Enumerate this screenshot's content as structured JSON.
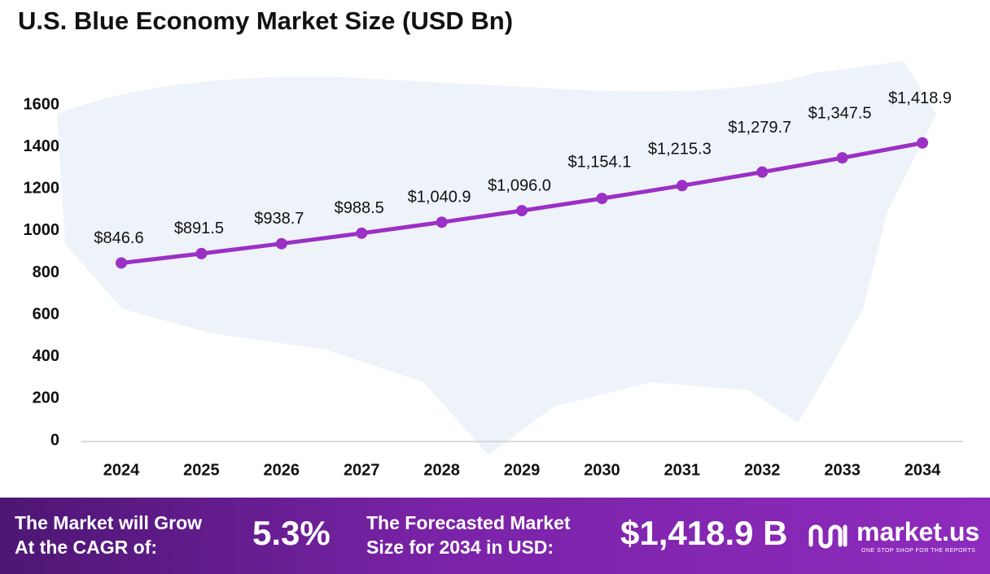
{
  "chart_data": {
    "type": "line",
    "title": "U.S. Blue Economy Market Size (USD Bn)",
    "categories": [
      "2024",
      "2025",
      "2026",
      "2027",
      "2028",
      "2029",
      "2030",
      "2031",
      "2032",
      "2033",
      "2034"
    ],
    "values": [
      846.6,
      891.5,
      938.7,
      988.5,
      1040.9,
      1096.0,
      1154.1,
      1215.3,
      1279.7,
      1347.5,
      1418.9
    ],
    "value_labels": [
      "$846.6",
      "$891.5",
      "$938.7",
      "$988.5",
      "$1,040.9",
      "$1,096.0",
      "$1,154.1",
      "$1,215.3",
      "$1,279.7",
      "$1,347.5",
      "$1,418.9"
    ],
    "color": "#9b30c4",
    "ylim": [
      0,
      1600
    ],
    "yticks": [
      0,
      200,
      400,
      600,
      800,
      1000,
      1200,
      1400,
      1600
    ],
    "grid": false
  },
  "footer": {
    "cagr_text": [
      "The Market will Grow",
      "At the CAGR of:"
    ],
    "cagr_value": "5.3%",
    "forecast_text": [
      "The Forecasted Market",
      "Size for 2034 in USD:"
    ],
    "forecast_value": "$1,418.9 B",
    "brand": "market.us",
    "tagline": "ONE STOP SHOP FOR THE REPORTS"
  }
}
